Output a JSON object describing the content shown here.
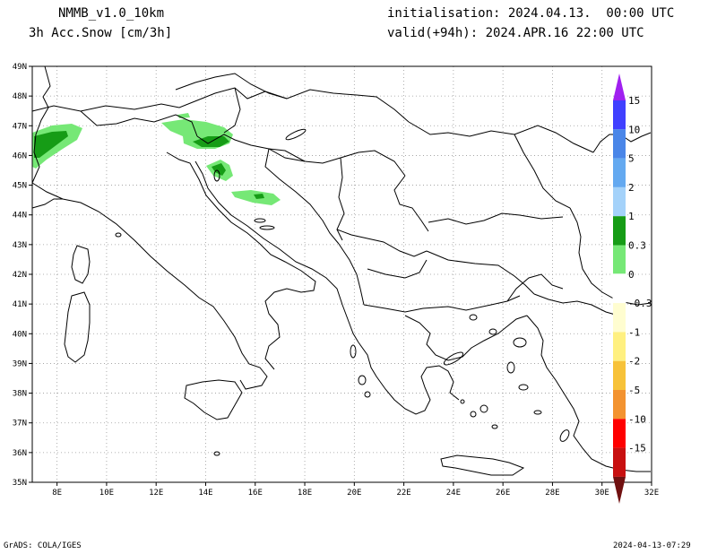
{
  "header": {
    "model": "NMMB_v1.0_10km",
    "variable": "3h Acc.Snow [cm/3h]",
    "init": "initialisation: 2024.04.13.  00:00 UTC",
    "valid": "valid(+94h): 2024.APR.16 22:00 UTC"
  },
  "footer": {
    "left": "GrADS: COLA/IGES",
    "right": "2024-04-13-07:29"
  },
  "axes": {
    "lat_labels": [
      "49N",
      "48N",
      "47N",
      "46N",
      "45N",
      "44N",
      "43N",
      "42N",
      "41N",
      "40N",
      "39N",
      "38N",
      "37N",
      "36N",
      "35N"
    ],
    "lon_labels": [
      "8E",
      "10E",
      "12E",
      "14E",
      "16E",
      "18E",
      "20E",
      "22E",
      "24E",
      "26E",
      "28E",
      "30E",
      "32E"
    ],
    "lon_range": [
      7,
      32
    ],
    "lat_range": [
      35,
      49
    ],
    "grid": true
  },
  "colorbar": {
    "labels": [
      "15",
      "10",
      "5",
      "2",
      "1",
      "0.3",
      "0",
      "-0.3",
      "-1",
      "-2",
      "-5",
      "-10",
      "-15"
    ],
    "colors": [
      "#a020f0",
      "#4040ff",
      "#4a86e8",
      "#64a9f0",
      "#a4d2fa",
      "#169c16",
      "#76e876",
      "#ffffff",
      "#fffdd0",
      "#fff080",
      "#f7c239",
      "#f39330",
      "#ff0000",
      "#c81010",
      "#701010"
    ]
  },
  "snow_areas": [
    {
      "lon": 7.8,
      "lat": 46.2,
      "level": "1"
    },
    {
      "lon": 14.5,
      "lat": 46.5,
      "level": "1"
    },
    {
      "lon": 14.9,
      "lat": 45.5,
      "level": "1"
    },
    {
      "lon": 16.2,
      "lat": 44.5,
      "level": "0.3"
    }
  ]
}
